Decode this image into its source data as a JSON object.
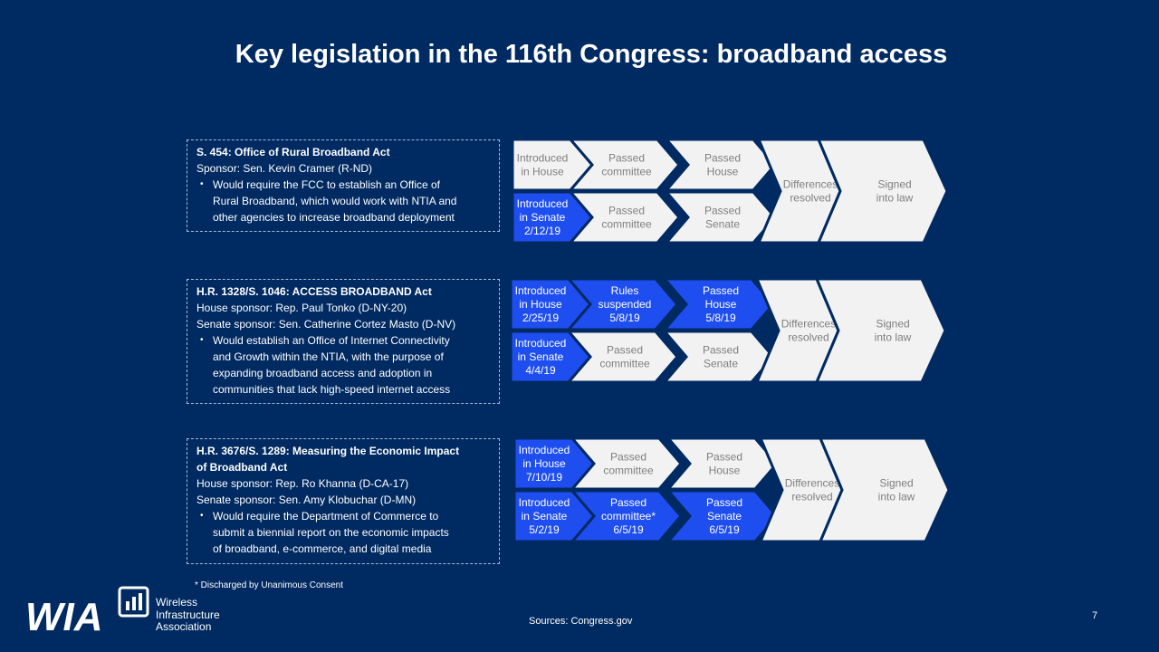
{
  "title": "Key legislation in the 116th Congress: broadband access",
  "colors": {
    "background": "#002a62",
    "active_stage": "#1f4ef0",
    "inactive_stage": "#f2f2f2",
    "inactive_text": "#7f7f7f",
    "active_text": "#ffffff"
  },
  "bills": [
    {
      "title": "S. 454: Office of Rural Broadband Act",
      "sponsors": [
        "Sponsor: Sen. Kevin Cramer (R-ND)"
      ],
      "bullet": [
        "Would require the FCC to establish an Office of",
        "Rural Broadband, which would work with NTIA and",
        "other agencies to increase broadband deployment"
      ],
      "house": [
        {
          "lines": [
            "Introduced",
            "in House"
          ],
          "active": false
        },
        {
          "lines": [
            "Passed",
            "committee"
          ],
          "active": false
        },
        {
          "lines": [
            "Passed",
            "House"
          ],
          "active": false
        }
      ],
      "senate": [
        {
          "lines": [
            "Introduced",
            "in Senate",
            "2/12/19"
          ],
          "active": true
        },
        {
          "lines": [
            "Passed",
            "committee"
          ],
          "active": false
        },
        {
          "lines": [
            "Passed",
            "Senate"
          ],
          "active": false
        }
      ],
      "resolved": {
        "lines": [
          "Differences",
          "resolved"
        ],
        "active": false
      },
      "signed": {
        "lines": [
          "Signed",
          "into law"
        ],
        "active": false
      }
    },
    {
      "title": "H.R. 1328/S. 1046: ACCESS BROADBAND Act",
      "sponsors": [
        "House sponsor: Rep. Paul Tonko (D-NY-20)",
        "Senate sponsor: Sen. Catherine Cortez Masto (D-NV)"
      ],
      "bullet": [
        "Would establish an Office of Internet Connectivity",
        "and Growth within the NTIA, with the purpose of",
        "expanding broadband access and adoption in",
        "communities that lack high-speed internet access"
      ],
      "house": [
        {
          "lines": [
            "Introduced",
            "in House",
            "2/25/19"
          ],
          "active": true
        },
        {
          "lines": [
            "Rules",
            "suspended",
            "5/8/19"
          ],
          "active": true
        },
        {
          "lines": [
            "Passed",
            "House",
            "5/8/19"
          ],
          "active": true
        }
      ],
      "senate": [
        {
          "lines": [
            "Introduced",
            "in Senate",
            "4/4/19"
          ],
          "active": true
        },
        {
          "lines": [
            "Passed",
            "committee"
          ],
          "active": false
        },
        {
          "lines": [
            "Passed",
            "Senate"
          ],
          "active": false
        }
      ],
      "resolved": {
        "lines": [
          "Differences",
          "resolved"
        ],
        "active": false
      },
      "signed": {
        "lines": [
          "Signed",
          "into law"
        ],
        "active": false
      }
    },
    {
      "title": [
        "H.R. 3676/S. 1289: Measuring the Economic Impact",
        "of Broadband Act"
      ],
      "sponsors": [
        "House sponsor: Rep. Ro Khanna (D-CA-17)",
        "Senate sponsor: Sen. Amy Klobuchar (D-MN)"
      ],
      "bullet": [
        "Would require the Department of Commerce to",
        "submit a biennial report on the economic impacts",
        "of broadband, e-commerce, and digital media"
      ],
      "house": [
        {
          "lines": [
            "Introduced",
            "in House",
            "7/10/19"
          ],
          "active": true
        },
        {
          "lines": [
            "Passed",
            "committee"
          ],
          "active": false
        },
        {
          "lines": [
            "Passed",
            "House"
          ],
          "active": false
        }
      ],
      "senate": [
        {
          "lines": [
            "Introduced",
            "in Senate",
            "5/2/19"
          ],
          "active": true
        },
        {
          "lines": [
            "Passed",
            "committee*",
            "6/5/19"
          ],
          "active": true
        },
        {
          "lines": [
            "Passed",
            "Senate",
            "6/5/19"
          ],
          "active": true
        }
      ],
      "resolved": {
        "lines": [
          "Differences",
          "resolved"
        ],
        "active": false
      },
      "signed": {
        "lines": [
          "Signed",
          "into law"
        ],
        "active": false
      }
    }
  ],
  "footnote": "* Discharged by Unanimous Consent",
  "sources": "Sources: Congress.gov",
  "page_number": "7",
  "logo": {
    "mark": "WIA",
    "lines": [
      "Wireless",
      "Infrastructure",
      "Association"
    ]
  }
}
